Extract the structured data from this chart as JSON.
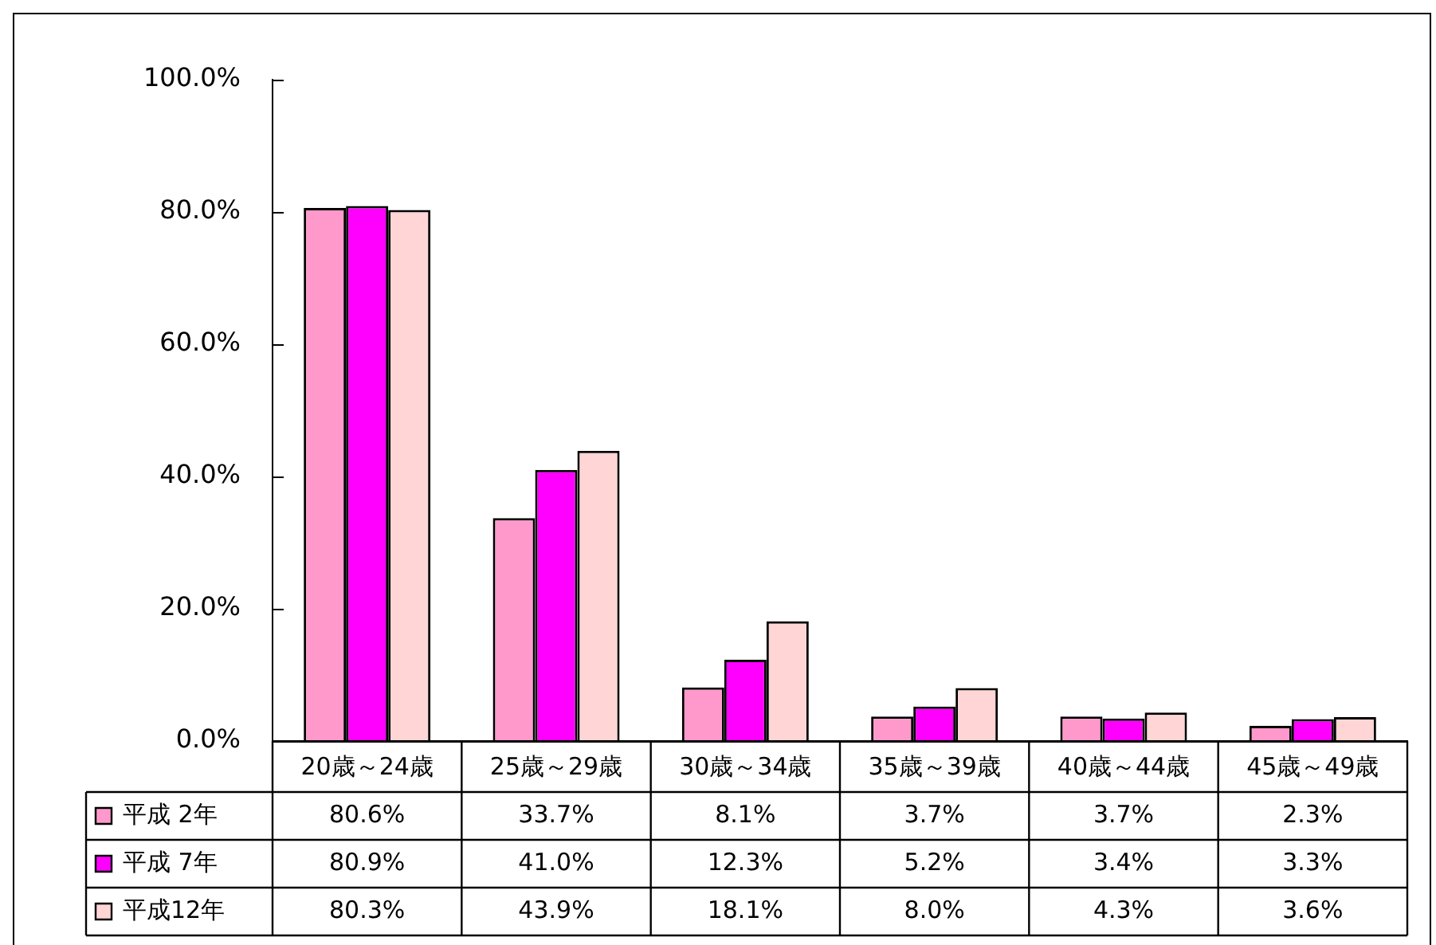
{
  "chart_data": {
    "type": "bar",
    "categories": [
      "20歳～24歳",
      "25歳～29歳",
      "30歳～34歳",
      "35歳～39歳",
      "40歳～44歳",
      "45歳～49歳"
    ],
    "series": [
      {
        "name": "平成 2年",
        "color": "#ff99cc",
        "values": [
          80.6,
          33.7,
          8.1,
          3.7,
          3.7,
          2.3
        ],
        "value_labels": [
          "80.6%",
          "33.7%",
          "8.1%",
          "3.7%",
          "3.7%",
          "2.3%"
        ]
      },
      {
        "name": "平成 7年",
        "color": "#ff00ff",
        "values": [
          80.9,
          41.0,
          12.3,
          5.2,
          3.4,
          3.3
        ],
        "value_labels": [
          "80.9%",
          "41.0%",
          "12.3%",
          "5.2%",
          "3.4%",
          "3.3%"
        ]
      },
      {
        "name": "平成12年",
        "color": "#ffd5d5",
        "values": [
          80.3,
          43.9,
          18.1,
          8.0,
          4.3,
          3.6
        ],
        "value_labels": [
          "80.3%",
          "43.9%",
          "18.1%",
          "8.0%",
          "4.3%",
          "3.6%"
        ]
      }
    ],
    "ylim": [
      0,
      100
    ],
    "yticks": [
      {
        "value": 0,
        "label": "0.0%"
      },
      {
        "value": 20,
        "label": "20.0%"
      },
      {
        "value": 40,
        "label": "40.0%"
      },
      {
        "value": 60,
        "label": "60.0%"
      },
      {
        "value": 80,
        "label": "80.0%"
      },
      {
        "value": 100,
        "label": "100.0%"
      }
    ],
    "grid": false,
    "legend": "bottom"
  }
}
